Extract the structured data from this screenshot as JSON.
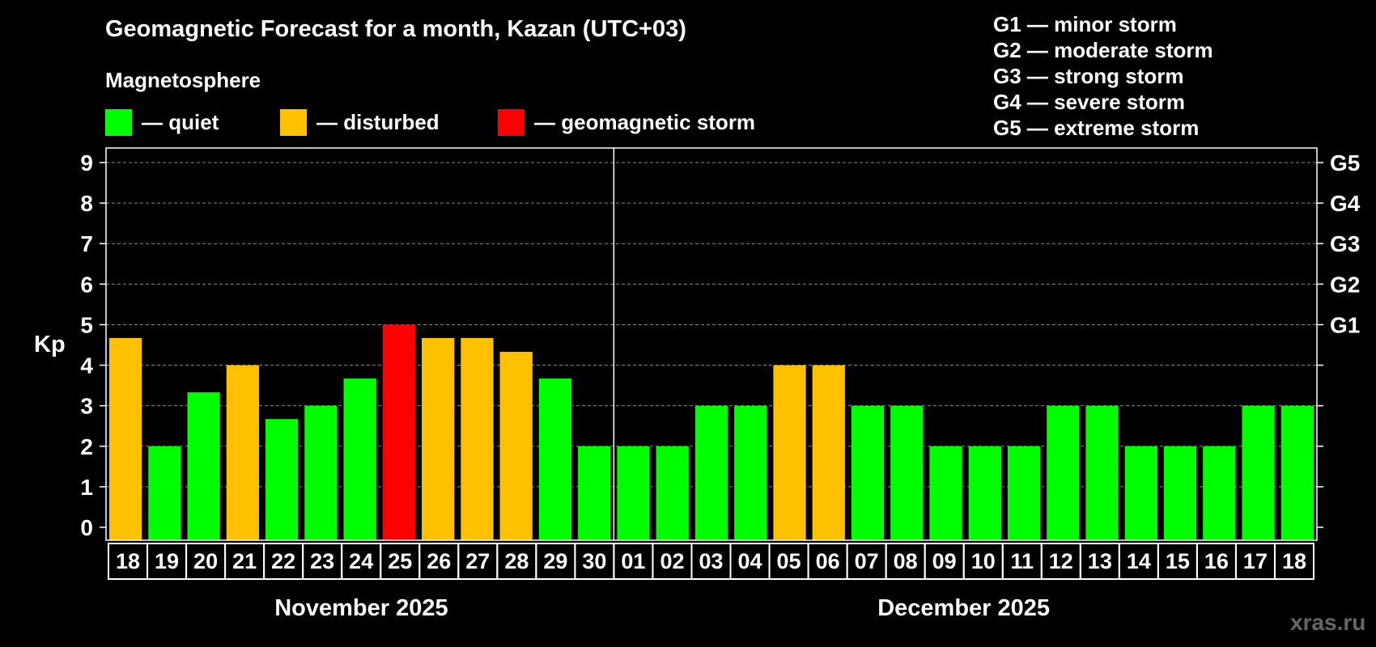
{
  "title": "Geomagnetic Forecast for a month, Kazan (UTC+03)",
  "legend": {
    "heading": "Magnetosphere",
    "items": [
      {
        "label": "— quiet",
        "color": "#00ff00"
      },
      {
        "label": "— disturbed",
        "color": "#ffc000"
      },
      {
        "label": "— geomagnetic storm",
        "color": "#ff0000"
      }
    ]
  },
  "g_scale": [
    "G1 — minor storm",
    "G2 — moderate storm",
    "G3 — strong storm",
    "G4 — severe storm",
    "G5 — extreme storm"
  ],
  "watermark": "xras.ru",
  "chart_data": {
    "type": "bar",
    "title": "Geomagnetic Forecast for a month, Kazan (UTC+03)",
    "ylabel": "Kp",
    "ylim": [
      0,
      9
    ],
    "yticks": [
      "0",
      "1",
      "2",
      "3",
      "4",
      "5",
      "6",
      "7",
      "8",
      "9"
    ],
    "right_axis_labels": [
      {
        "kp": 5,
        "label": "G1"
      },
      {
        "kp": 6,
        "label": "G2"
      },
      {
        "kp": 7,
        "label": "G3"
      },
      {
        "kp": 8,
        "label": "G4"
      },
      {
        "kp": 9,
        "label": "G5"
      }
    ],
    "months": [
      {
        "label": "November 2025",
        "days": 13
      },
      {
        "label": "December 2025",
        "days": 18
      }
    ],
    "categories": [
      "18",
      "19",
      "20",
      "21",
      "22",
      "23",
      "24",
      "25",
      "26",
      "27",
      "28",
      "29",
      "30",
      "01",
      "02",
      "03",
      "04",
      "05",
      "06",
      "07",
      "08",
      "09",
      "10",
      "11",
      "12",
      "13",
      "14",
      "15",
      "16",
      "17",
      "18"
    ],
    "values": [
      4.67,
      2,
      3.33,
      4,
      2.67,
      3,
      3.67,
      5,
      4.67,
      4.67,
      4.33,
      3.67,
      2,
      2,
      2,
      3,
      3,
      4,
      4,
      3,
      3,
      2,
      2,
      2,
      3,
      3,
      2,
      2,
      2,
      3,
      3
    ],
    "status": [
      "disturbed",
      "quiet",
      "quiet",
      "disturbed",
      "quiet",
      "quiet",
      "quiet",
      "storm",
      "disturbed",
      "disturbed",
      "disturbed",
      "quiet",
      "quiet",
      "quiet",
      "quiet",
      "quiet",
      "quiet",
      "disturbed",
      "disturbed",
      "quiet",
      "quiet",
      "quiet",
      "quiet",
      "quiet",
      "quiet",
      "quiet",
      "quiet",
      "quiet",
      "quiet",
      "quiet",
      "quiet"
    ],
    "status_colors": {
      "quiet": "#00ff00",
      "disturbed": "#ffc000",
      "storm": "#ff0000"
    }
  }
}
